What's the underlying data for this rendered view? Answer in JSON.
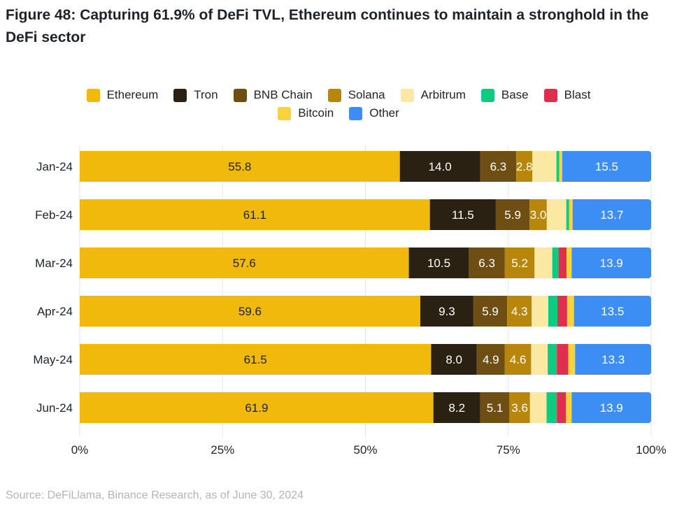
{
  "title": "Figure 48: Capturing 61.9% of DeFi TVL, Ethereum continues to maintain a stronghold in the DeFi sector",
  "source": "Source: DeFiLlama, Binance Research, as of June 30, 2024",
  "chart_data": {
    "type": "bar",
    "orientation": "horizontal",
    "stacked": true,
    "normalized_percent": true,
    "categories": [
      "Jan-24",
      "Feb-24",
      "Mar-24",
      "Apr-24",
      "May-24",
      "Jun-24"
    ],
    "series": [
      {
        "name": "Ethereum",
        "color": "#F0B90B",
        "label_color": "#1e2329",
        "values": [
          55.8,
          61.1,
          57.6,
          59.6,
          61.5,
          61.9
        ],
        "labels": [
          "55.8",
          "61.1",
          "57.6",
          "59.6",
          "61.5",
          "61.9"
        ]
      },
      {
        "name": "Tron",
        "color": "#2B2112",
        "label_color": "#ffffff",
        "values": [
          14.0,
          11.5,
          10.5,
          9.3,
          8.0,
          8.2
        ],
        "labels": [
          "14.0",
          "11.5",
          "10.5",
          "9.3",
          "8.0",
          "8.2"
        ]
      },
      {
        "name": "BNB Chain",
        "color": "#6F4E13",
        "label_color": "#ffffff",
        "values": [
          6.3,
          5.9,
          6.3,
          5.9,
          4.9,
          5.1
        ],
        "labels": [
          "6.3",
          "5.9",
          "6.3",
          "5.9",
          "4.9",
          "5.1"
        ]
      },
      {
        "name": "Solana",
        "color": "#B7860B",
        "label_color": "#ffffff",
        "values": [
          2.8,
          3.0,
          5.2,
          4.3,
          4.6,
          3.6
        ],
        "labels": [
          "2.8",
          "3.0",
          "5.2",
          "4.3",
          "4.6",
          "3.6"
        ]
      },
      {
        "name": "Arbitrum",
        "color": "#FBE8A3",
        "label_color": "#1e2329",
        "values": [
          4.2,
          3.4,
          3.1,
          2.9,
          2.9,
          2.9
        ],
        "labels": [
          "",
          "",
          "",
          "",
          "",
          ""
        ]
      },
      {
        "name": "Base",
        "color": "#0ECB81",
        "label_color": "#1e2329",
        "values": [
          0.5,
          0.5,
          1.1,
          1.6,
          1.6,
          1.8
        ],
        "labels": [
          "",
          "",
          "",
          "",
          "",
          ""
        ]
      },
      {
        "name": "Blast",
        "color": "#DE2F4E",
        "label_color": "#1e2329",
        "values": [
          0.0,
          0.0,
          1.4,
          1.7,
          2.0,
          1.6
        ],
        "labels": [
          "",
          "",
          "",
          "",
          "",
          ""
        ]
      },
      {
        "name": "Bitcoin",
        "color": "#F8D33A",
        "label_color": "#1e2329",
        "values": [
          0.5,
          0.6,
          0.9,
          1.2,
          1.2,
          1.0
        ],
        "labels": [
          "",
          "",
          "",
          "",
          "",
          ""
        ]
      },
      {
        "name": "Other",
        "color": "#3C8EF5",
        "label_color": "#ffffff",
        "values": [
          15.5,
          13.7,
          13.9,
          13.5,
          13.3,
          13.9
        ],
        "labels": [
          "15.5",
          "13.7",
          "13.9",
          "13.5",
          "13.3",
          "13.9"
        ]
      }
    ],
    "x_ticks": [
      "0%",
      "25%",
      "50%",
      "75%",
      "100%"
    ],
    "x_tick_values": [
      0,
      25,
      50,
      75,
      100
    ],
    "xlim": [
      0,
      100
    ],
    "grid": "vertical",
    "legend_position": "top",
    "xlabel": "",
    "ylabel": ""
  }
}
